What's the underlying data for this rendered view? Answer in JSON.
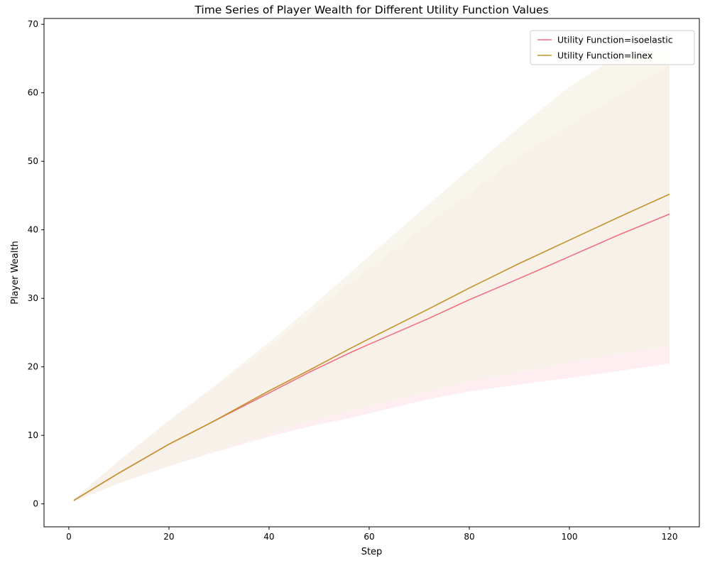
{
  "chart_data": {
    "type": "line",
    "title": "Time Series of Player Wealth for Different Utility Function Values",
    "xlabel": "Step",
    "ylabel": "Player Wealth",
    "xlim": [
      -4.95,
      125.95
    ],
    "ylim": [
      -3.35,
      70.85
    ],
    "xticks": [
      0,
      20,
      40,
      60,
      80,
      100,
      120
    ],
    "yticks": [
      0,
      10,
      20,
      30,
      40,
      50,
      60,
      70
    ],
    "grid": false,
    "legend_position": "top-right",
    "series": [
      {
        "name": "Utility Function=isoelastic",
        "color": "#f0707f",
        "band_color": "#fde8ec",
        "x": [
          1,
          10,
          20,
          28,
          40,
          48,
          56,
          60,
          72,
          80,
          90,
          100,
          110,
          120
        ],
        "y": [
          0.5,
          4.5,
          8.7,
          11.7,
          16.2,
          19.2,
          22.0,
          23.3,
          27.1,
          29.8,
          32.9,
          36.1,
          39.3,
          42.3
        ],
        "lower": [
          0.35,
          3.0,
          5.5,
          7.3,
          9.8,
          11.3,
          12.5,
          13.2,
          15.3,
          16.4,
          17.4,
          18.4,
          19.4,
          20.5
        ],
        "upper": [
          0.7,
          6.2,
          12.0,
          16.4,
          22.9,
          27.6,
          32.1,
          34.3,
          41.0,
          45.3,
          50.8,
          55.2,
          59.7,
          64.1
        ]
      },
      {
        "name": "Utility Function=linex",
        "color": "#c3922d",
        "band_color": "#f6f2e6",
        "x": [
          1,
          10,
          20,
          28,
          40,
          48,
          56,
          60,
          72,
          80,
          90,
          100,
          110,
          120
        ],
        "y": [
          0.5,
          4.5,
          8.7,
          11.7,
          16.5,
          19.5,
          22.6,
          24.1,
          28.5,
          31.5,
          35.1,
          38.5,
          41.9,
          45.2
        ],
        "lower": [
          0.35,
          3.0,
          5.6,
          7.4,
          10.2,
          12.0,
          13.5,
          14.2,
          16.5,
          17.8,
          19.2,
          20.6,
          21.8,
          23.0
        ],
        "upper": [
          0.7,
          6.3,
          12.2,
          16.6,
          23.6,
          28.5,
          33.6,
          36.2,
          43.8,
          48.8,
          55.0,
          60.9,
          65.5,
          66.8
        ]
      }
    ]
  }
}
